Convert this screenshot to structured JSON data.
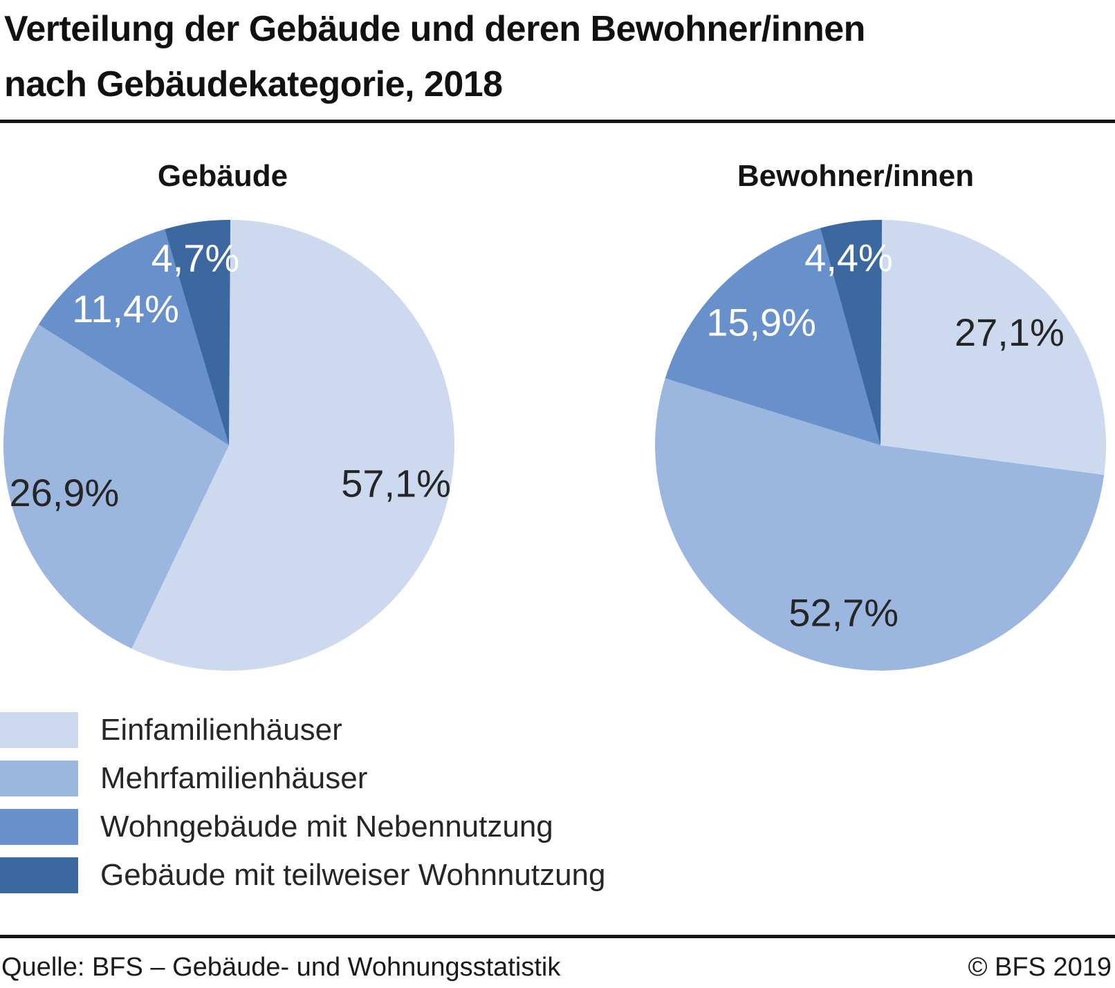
{
  "page": {
    "title_line1": "Verteilung der Gebäude und deren Bewohner/innen",
    "title_line2": "nach Gebäudekategorie, 2018"
  },
  "chart_data": {
    "type": "pie",
    "title": "Verteilung der Gebäude und deren Bewohner/innen nach Gebäudekategorie, 2018",
    "direction": "clockwise",
    "start_angle_deg": 0,
    "legend_position": "bottom-left",
    "categories": [
      "Einfamilienhäuser",
      "Mehrfamilienhäuser",
      "Wohngebäude mit Nebennutzung",
      "Gebäude mit teilweiser Wohnnutzung"
    ],
    "colors": [
      "#CDD9EF",
      "#9CB7DF",
      "#6891CB",
      "#3C68A0"
    ],
    "label_text_colors": [
      "#262626",
      "#262626",
      "#FFFFFF",
      "#FFFFFF"
    ],
    "pies": [
      {
        "title": "Gebäude",
        "values": [
          57.1,
          26.9,
          11.4,
          4.7
        ],
        "labels": [
          "57,1%",
          "26,9%",
          "11,4%",
          "4,7%"
        ]
      },
      {
        "title": "Bewohner/innen",
        "values": [
          27.1,
          52.7,
          15.9,
          4.4
        ],
        "labels": [
          "27,1%",
          "52,7%",
          "15,9%",
          "4,4%"
        ]
      }
    ]
  },
  "footer": {
    "source": "Quelle: BFS – Gebäude- und Wohnungsstatistik",
    "copyright": "© BFS 2019"
  }
}
